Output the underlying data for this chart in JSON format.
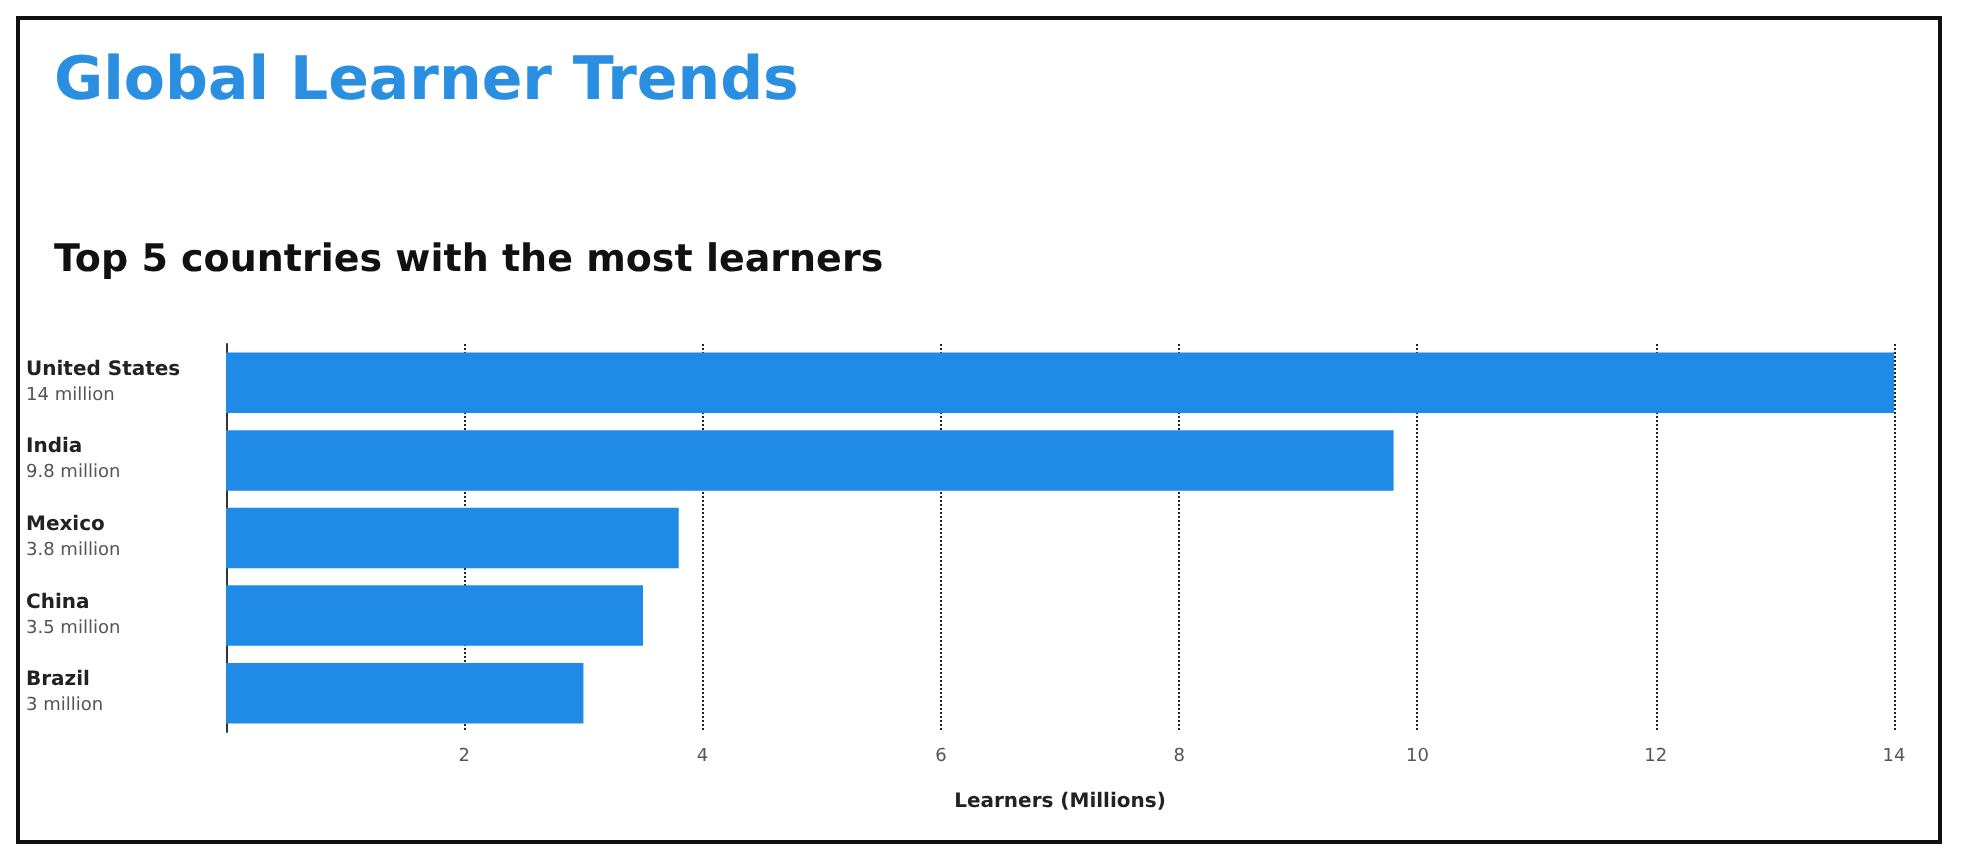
{
  "chart_data": {
    "type": "bar",
    "orientation": "horizontal",
    "title": "Global Learner Trends",
    "subtitle": "Top 5 countries with the most learners",
    "xlabel": "Learners (Millions)",
    "categories": [
      "United States\n14 million",
      "India\n9.8 million",
      "Mexico\n3.8 million",
      "China\n3.5 million",
      "Brazil\n3 million"
    ],
    "values": [
      14,
      9.8,
      3.8,
      3.5,
      3
    ],
    "color": "#1f8be6",
    "xlim": [
      0,
      14
    ],
    "xticks": [
      2,
      4,
      6,
      8,
      10,
      12,
      14
    ],
    "grid": "x"
  }
}
